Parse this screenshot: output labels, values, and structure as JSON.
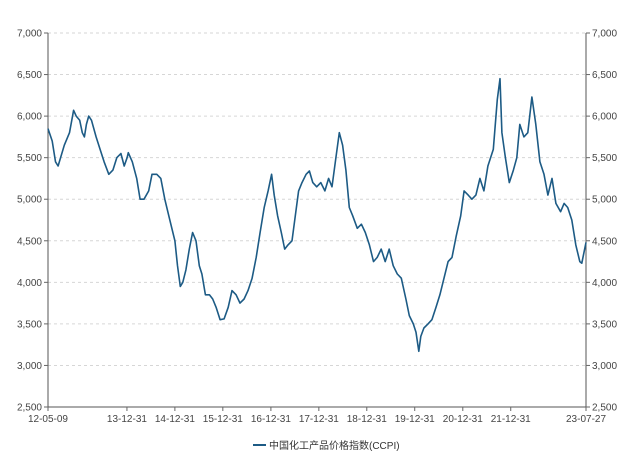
{
  "chart_data": {
    "type": "line",
    "title": "",
    "xlabel": "",
    "ylabel": "",
    "ylim": [
      2500,
      7000
    ],
    "y_ticks": [
      2500,
      3000,
      3500,
      4000,
      4500,
      5000,
      5500,
      6000,
      6500,
      7000
    ],
    "y_tick_labels": [
      "2,500",
      "3,000",
      "3,500",
      "4,000",
      "4,500",
      "5,000",
      "5,500",
      "6,000",
      "6,500",
      "7,000"
    ],
    "y_axis_sides": [
      "left",
      "right"
    ],
    "x_start": "2012-05-09",
    "x_end": "2023-07-27",
    "x_ticks": [
      {
        "date": "2012-05-09",
        "label": "12-05-09"
      },
      {
        "date": "2013-12-31",
        "label": "13-12-31"
      },
      {
        "date": "2014-12-31",
        "label": "14-12-31"
      },
      {
        "date": "2015-12-31",
        "label": "15-12-31"
      },
      {
        "date": "2016-12-31",
        "label": "16-12-31"
      },
      {
        "date": "2017-12-31",
        "label": "17-12-31"
      },
      {
        "date": "2018-12-31",
        "label": "18-12-31"
      },
      {
        "date": "2019-12-31",
        "label": "19-12-31"
      },
      {
        "date": "2020-12-31",
        "label": "20-12-31"
      },
      {
        "date": "2021-12-31",
        "label": "21-12-31"
      },
      {
        "date": "2023-07-27",
        "label": "23-07-27"
      }
    ],
    "grid": {
      "horizontal": true,
      "vertical": false,
      "style": "dashed"
    },
    "legend_position": "bottom-center",
    "series": [
      {
        "name": "中国化工产品价格指数(CCPI)",
        "color": "#1d5b85",
        "points": [
          [
            "2012-05-09",
            5850
          ],
          [
            "2012-06-10",
            5700
          ],
          [
            "2012-07-05",
            5450
          ],
          [
            "2012-07-25",
            5400
          ],
          [
            "2012-09-10",
            5650
          ],
          [
            "2012-10-20",
            5800
          ],
          [
            "2012-11-20",
            6070
          ],
          [
            "2012-12-10",
            6000
          ],
          [
            "2013-01-05",
            5950
          ],
          [
            "2013-01-25",
            5800
          ],
          [
            "2013-02-10",
            5750
          ],
          [
            "2013-02-25",
            5900
          ],
          [
            "2013-03-15",
            6000
          ],
          [
            "2013-04-05",
            5950
          ],
          [
            "2013-05-10",
            5750
          ],
          [
            "2013-06-10",
            5600
          ],
          [
            "2013-07-10",
            5450
          ],
          [
            "2013-08-15",
            5300
          ],
          [
            "2013-09-15",
            5350
          ],
          [
            "2013-10-15",
            5500
          ],
          [
            "2013-11-15",
            5550
          ],
          [
            "2013-12-10",
            5400
          ],
          [
            "2014-01-01",
            5500
          ],
          [
            "2014-01-10",
            5560
          ],
          [
            "2014-02-10",
            5450
          ],
          [
            "2014-03-15",
            5250
          ],
          [
            "2014-04-10",
            5000
          ],
          [
            "2014-05-10",
            5000
          ],
          [
            "2014-06-15",
            5100
          ],
          [
            "2014-07-10",
            5300
          ],
          [
            "2014-08-15",
            5300
          ],
          [
            "2014-09-15",
            5250
          ],
          [
            "2014-10-15",
            5000
          ],
          [
            "2014-11-15",
            4800
          ],
          [
            "2014-12-31",
            4500
          ],
          [
            "2015-01-20",
            4200
          ],
          [
            "2015-02-10",
            3950
          ],
          [
            "2015-03-01",
            4000
          ],
          [
            "2015-03-25",
            4150
          ],
          [
            "2015-04-20",
            4400
          ],
          [
            "2015-05-15",
            4600
          ],
          [
            "2015-06-10",
            4500
          ],
          [
            "2015-07-05",
            4200
          ],
          [
            "2015-07-25",
            4100
          ],
          [
            "2015-08-20",
            3850
          ],
          [
            "2015-09-20",
            3850
          ],
          [
            "2015-10-15",
            3800
          ],
          [
            "2015-11-10",
            3700
          ],
          [
            "2015-12-10",
            3550
          ],
          [
            "2016-01-10",
            3560
          ],
          [
            "2016-02-10",
            3700
          ],
          [
            "2016-03-10",
            3900
          ],
          [
            "2016-04-10",
            3850
          ],
          [
            "2016-05-10",
            3750
          ],
          [
            "2016-06-10",
            3800
          ],
          [
            "2016-07-10",
            3900
          ],
          [
            "2016-08-10",
            4050
          ],
          [
            "2016-09-10",
            4300
          ],
          [
            "2016-10-10",
            4600
          ],
          [
            "2016-11-10",
            4900
          ],
          [
            "2016-12-10",
            5100
          ],
          [
            "2017-01-05",
            5300
          ],
          [
            "2017-01-25",
            5050
          ],
          [
            "2017-02-20",
            4800
          ],
          [
            "2017-03-20",
            4600
          ],
          [
            "2017-04-15",
            4400
          ],
          [
            "2017-05-10",
            4450
          ],
          [
            "2017-06-10",
            4500
          ],
          [
            "2017-07-05",
            4800
          ],
          [
            "2017-07-30",
            5100
          ],
          [
            "2017-08-25",
            5200
          ],
          [
            "2017-09-25",
            5300
          ],
          [
            "2017-10-20",
            5340
          ],
          [
            "2017-11-15",
            5200
          ],
          [
            "2017-12-15",
            5150
          ],
          [
            "2018-01-15",
            5200
          ],
          [
            "2018-02-15",
            5100
          ],
          [
            "2018-03-15",
            5250
          ],
          [
            "2018-04-10",
            5150
          ],
          [
            "2018-05-10",
            5500
          ],
          [
            "2018-06-05",
            5800
          ],
          [
            "2018-06-30",
            5650
          ],
          [
            "2018-07-25",
            5350
          ],
          [
            "2018-08-20",
            4900
          ],
          [
            "2018-09-15",
            4800
          ],
          [
            "2018-10-20",
            4650
          ],
          [
            "2018-11-20",
            4700
          ],
          [
            "2018-12-20",
            4600
          ],
          [
            "2019-01-20",
            4450
          ],
          [
            "2019-02-20",
            4250
          ],
          [
            "2019-03-20",
            4300
          ],
          [
            "2019-04-20",
            4400
          ],
          [
            "2019-05-20",
            4250
          ],
          [
            "2019-06-20",
            4400
          ],
          [
            "2019-07-20",
            4200
          ],
          [
            "2019-08-20",
            4100
          ],
          [
            "2019-09-20",
            4050
          ],
          [
            "2019-10-25",
            3800
          ],
          [
            "2019-11-20",
            3600
          ],
          [
            "2019-12-20",
            3500
          ],
          [
            "2020-01-10",
            3400
          ],
          [
            "2020-01-31",
            3170
          ],
          [
            "2020-02-15",
            3350
          ],
          [
            "2020-03-10",
            3450
          ],
          [
            "2020-04-10",
            3500
          ],
          [
            "2020-05-10",
            3550
          ],
          [
            "2020-06-10",
            3700
          ],
          [
            "2020-07-10",
            3850
          ],
          [
            "2020-08-10",
            4050
          ],
          [
            "2020-09-10",
            4250
          ],
          [
            "2020-10-10",
            4300
          ],
          [
            "2020-11-10",
            4550
          ],
          [
            "2020-12-15",
            4800
          ],
          [
            "2021-01-10",
            5100
          ],
          [
            "2021-02-10",
            5050
          ],
          [
            "2021-03-10",
            5000
          ],
          [
            "2021-04-10",
            5050
          ],
          [
            "2021-05-10",
            5250
          ],
          [
            "2021-06-10",
            5100
          ],
          [
            "2021-07-10",
            5400
          ],
          [
            "2021-08-20",
            5600
          ],
          [
            "2021-09-20",
            6200
          ],
          [
            "2021-10-10",
            6450
          ],
          [
            "2021-10-25",
            5800
          ],
          [
            "2021-11-20",
            5500
          ],
          [
            "2021-12-20",
            5200
          ],
          [
            "2022-01-20",
            5350
          ],
          [
            "2022-02-15",
            5500
          ],
          [
            "2022-03-10",
            5900
          ],
          [
            "2022-04-10",
            5750
          ],
          [
            "2022-05-10",
            5800
          ],
          [
            "2022-06-10",
            6230
          ],
          [
            "2022-07-10",
            5900
          ],
          [
            "2022-08-10",
            5450
          ],
          [
            "2022-09-10",
            5300
          ],
          [
            "2022-10-10",
            5050
          ],
          [
            "2022-11-10",
            5250
          ],
          [
            "2022-12-10",
            4950
          ],
          [
            "2023-01-15",
            4850
          ],
          [
            "2023-02-10",
            4950
          ],
          [
            "2023-03-10",
            4900
          ],
          [
            "2023-04-10",
            4750
          ],
          [
            "2023-05-10",
            4450
          ],
          [
            "2023-06-10",
            4250
          ],
          [
            "2023-06-25",
            4230
          ],
          [
            "2023-07-27",
            4480
          ]
        ]
      }
    ]
  }
}
